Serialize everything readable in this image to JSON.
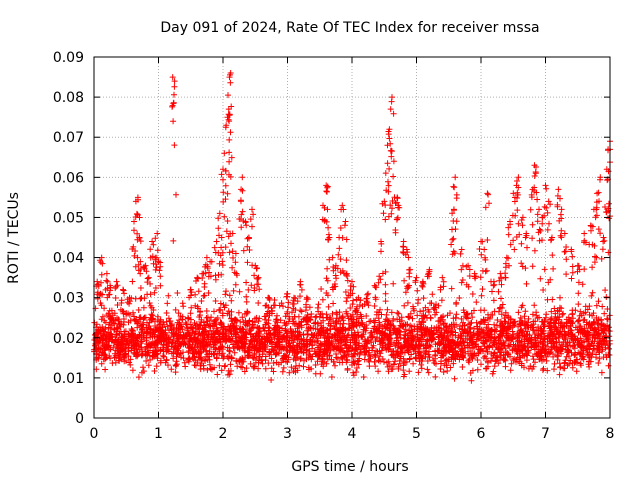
{
  "chart_data": {
    "type": "scatter",
    "title": "Day 091 of 2024, Rate Of TEC Index for receiver mssa",
    "xlabel": "GPS time / hours",
    "ylabel": "ROTI / TECUs",
    "xlim": [
      0,
      8
    ],
    "ylim": [
      0,
      0.09
    ],
    "grid": true,
    "marker": "plus",
    "point_color": "#ff0000",
    "xticks": [
      "0",
      "1",
      "2",
      "3",
      "4",
      "5",
      "6",
      "7",
      "8"
    ],
    "yticks": [
      "0",
      "0.01",
      "0.02",
      "0.03",
      "0.04",
      "0.05",
      "0.06",
      "0.07",
      "0.08",
      "0.09"
    ],
    "series": [
      {
        "name": "ROTI",
        "baseline_range": [
          0.005,
          0.03
        ],
        "points": [
          [
            0.05,
            0.034
          ],
          [
            0.1,
            0.031
          ],
          [
            0.12,
            0.04
          ],
          [
            0.2,
            0.036
          ],
          [
            0.25,
            0.033
          ],
          [
            0.35,
            0.034
          ],
          [
            0.45,
            0.032
          ],
          [
            0.55,
            0.03
          ],
          [
            0.62,
            0.049
          ],
          [
            0.65,
            0.054
          ],
          [
            0.68,
            0.055
          ],
          [
            0.7,
            0.045
          ],
          [
            0.72,
            0.039
          ],
          [
            0.8,
            0.038
          ],
          [
            0.85,
            0.035
          ],
          [
            0.9,
            0.044
          ],
          [
            0.95,
            0.04
          ],
          [
            0.98,
            0.046
          ],
          [
            1.0,
            0.039
          ],
          [
            1.22,
            0.085
          ],
          [
            1.25,
            0.084
          ],
          [
            1.5,
            0.032
          ],
          [
            1.6,
            0.035
          ],
          [
            1.7,
            0.036
          ],
          [
            1.75,
            0.04
          ],
          [
            1.8,
            0.039
          ],
          [
            1.9,
            0.044
          ],
          [
            1.95,
            0.051
          ],
          [
            1.98,
            0.045
          ],
          [
            2.0,
            0.062
          ],
          [
            2.02,
            0.066
          ],
          [
            2.05,
            0.073
          ],
          [
            2.07,
            0.075
          ],
          [
            2.09,
            0.077
          ],
          [
            2.1,
            0.085
          ],
          [
            2.12,
            0.086
          ],
          [
            2.15,
            0.046
          ],
          [
            2.2,
            0.041
          ],
          [
            2.28,
            0.057
          ],
          [
            2.3,
            0.06
          ],
          [
            2.35,
            0.049
          ],
          [
            2.4,
            0.045
          ],
          [
            2.45,
            0.052
          ],
          [
            2.5,
            0.038
          ],
          [
            2.55,
            0.035
          ],
          [
            2.7,
            0.03
          ],
          [
            3.0,
            0.031
          ],
          [
            3.1,
            0.03
          ],
          [
            3.2,
            0.034
          ],
          [
            3.3,
            0.03
          ],
          [
            3.55,
            0.053
          ],
          [
            3.6,
            0.058
          ],
          [
            3.62,
            0.052
          ],
          [
            3.65,
            0.045
          ],
          [
            3.7,
            0.04
          ],
          [
            3.75,
            0.038
          ],
          [
            3.8,
            0.045
          ],
          [
            3.85,
            0.053
          ],
          [
            3.9,
            0.049
          ],
          [
            3.92,
            0.036
          ],
          [
            4.0,
            0.034
          ],
          [
            4.1,
            0.03
          ],
          [
            4.25,
            0.031
          ],
          [
            4.35,
            0.033
          ],
          [
            4.45,
            0.044
          ],
          [
            4.5,
            0.054
          ],
          [
            4.55,
            0.068
          ],
          [
            4.58,
            0.072
          ],
          [
            4.6,
            0.077
          ],
          [
            4.62,
            0.08
          ],
          [
            4.65,
            0.064
          ],
          [
            4.7,
            0.055
          ],
          [
            4.72,
            0.053
          ],
          [
            4.8,
            0.044
          ],
          [
            4.85,
            0.042
          ],
          [
            4.9,
            0.037
          ],
          [
            5.0,
            0.035
          ],
          [
            5.1,
            0.034
          ],
          [
            5.2,
            0.037
          ],
          [
            5.4,
            0.035
          ],
          [
            5.55,
            0.047
          ],
          [
            5.58,
            0.052
          ],
          [
            5.6,
            0.06
          ],
          [
            5.7,
            0.042
          ],
          [
            5.8,
            0.038
          ],
          [
            5.9,
            0.036
          ],
          [
            6.0,
            0.044
          ],
          [
            6.05,
            0.042
          ],
          [
            6.1,
            0.056
          ],
          [
            6.2,
            0.034
          ],
          [
            6.3,
            0.036
          ],
          [
            6.4,
            0.04
          ],
          [
            6.45,
            0.049
          ],
          [
            6.5,
            0.056
          ],
          [
            6.55,
            0.058
          ],
          [
            6.58,
            0.06
          ],
          [
            6.65,
            0.05
          ],
          [
            6.7,
            0.046
          ],
          [
            6.8,
            0.057
          ],
          [
            6.83,
            0.063
          ],
          [
            6.85,
            0.061
          ],
          [
            6.9,
            0.052
          ],
          [
            6.95,
            0.05
          ],
          [
            7.0,
            0.058
          ],
          [
            7.05,
            0.054
          ],
          [
            7.1,
            0.045
          ],
          [
            7.2,
            0.057
          ],
          [
            7.25,
            0.052
          ],
          [
            7.3,
            0.046
          ],
          [
            7.4,
            0.042
          ],
          [
            7.5,
            0.038
          ],
          [
            7.6,
            0.046
          ],
          [
            7.7,
            0.048
          ],
          [
            7.75,
            0.052
          ],
          [
            7.8,
            0.056
          ],
          [
            7.85,
            0.06
          ],
          [
            7.9,
            0.045
          ],
          [
            7.95,
            0.062
          ],
          [
            7.97,
            0.067
          ],
          [
            8.0,
            0.069
          ]
        ]
      }
    ]
  }
}
